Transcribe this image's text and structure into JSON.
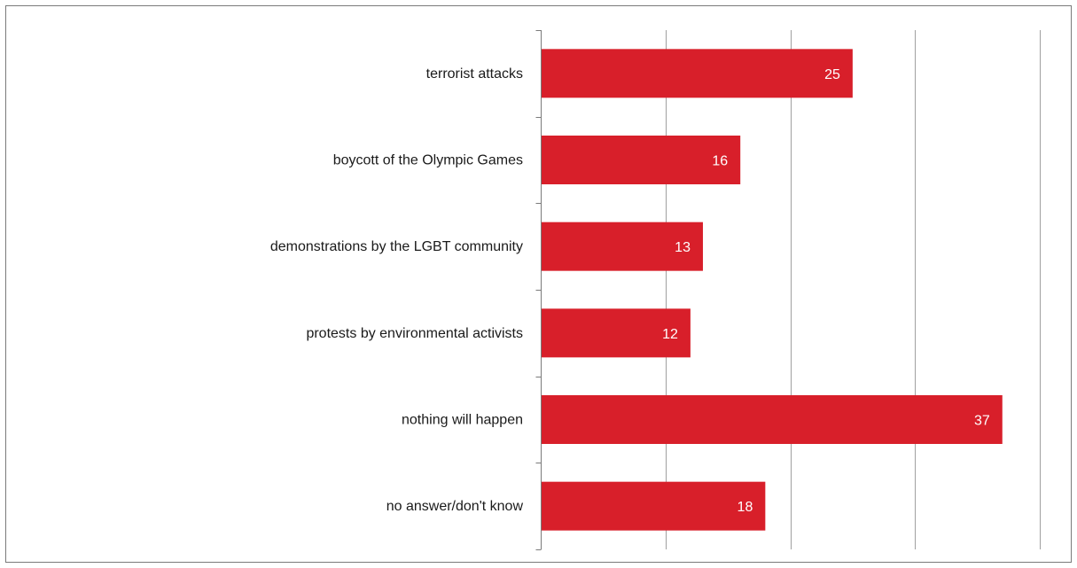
{
  "chart_data": {
    "type": "bar",
    "orientation": "horizontal",
    "categories": [
      "terrorist attacks",
      "boycott of the Olympic Games",
      "demonstrations by the LGBT community",
      "protests by environmental activists",
      "nothing will happen",
      "no answer/don't know"
    ],
    "values": [
      25,
      16,
      13,
      12,
      37,
      18
    ],
    "title": "",
    "xlabel": "",
    "ylabel": "",
    "xlim": [
      0,
      40
    ],
    "x_gridlines": [
      0,
      10,
      20,
      30,
      40
    ],
    "grid": true,
    "x_tick_labels_shown": false,
    "data_labels": true,
    "legend": "none",
    "colors": {
      "bar": "#d81f2a",
      "data_label": "#ffffff",
      "gridline": "#a0a0a0",
      "axis": "#7a7a7a",
      "frame": "#7a7a7a"
    }
  }
}
